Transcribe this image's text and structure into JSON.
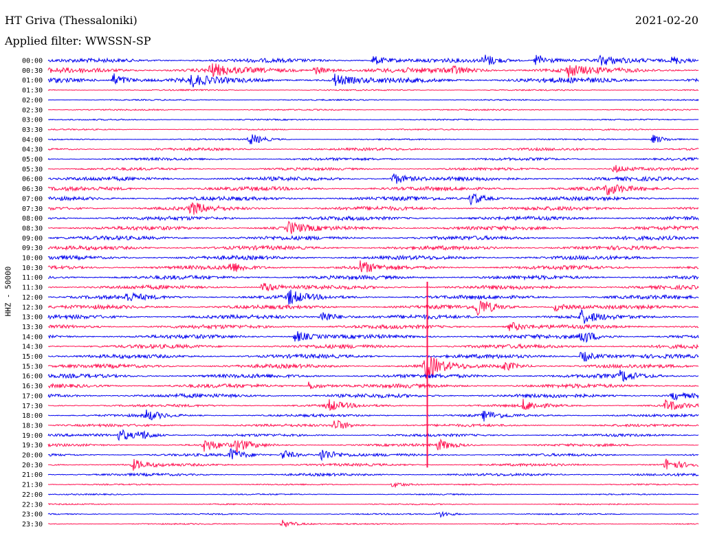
{
  "header": {
    "station": "HT Griva (Thessaloniki)",
    "date": "2021-02-20",
    "filter": "Applied filter: WWSSN-SP"
  },
  "chart_data": {
    "type": "line",
    "ylabel": "HHZ - 50000",
    "colors": [
      "#0000ee",
      "#ff1050"
    ],
    "rows": [
      "00:00",
      "00:30",
      "01:00",
      "01:30",
      "02:00",
      "02:30",
      "03:00",
      "03:30",
      "04:00",
      "04:30",
      "05:00",
      "05:30",
      "06:00",
      "06:30",
      "07:00",
      "07:30",
      "08:00",
      "08:30",
      "09:00",
      "09:30",
      "10:00",
      "10:30",
      "11:00",
      "11:30",
      "12:00",
      "12:30",
      "13:00",
      "13:30",
      "14:00",
      "14:30",
      "15:00",
      "15:30",
      "16:00",
      "16:30",
      "17:00",
      "17:30",
      "18:00",
      "18:30",
      "19:00",
      "19:30",
      "20:00",
      "20:30",
      "21:00",
      "21:30",
      "22:00",
      "22:30",
      "23:00",
      "23:30"
    ],
    "noise_level": [
      3,
      4,
      4,
      1,
      1,
      1,
      1,
      1,
      1,
      2,
      2,
      2,
      3,
      3,
      3,
      3,
      3,
      3,
      3,
      3,
      3,
      3,
      3,
      3,
      3,
      3,
      3,
      3,
      3,
      3,
      3,
      3,
      3,
      3,
      3,
      2,
      2,
      2,
      2,
      2,
      2,
      2,
      2,
      1,
      1,
      1,
      1,
      1
    ],
    "events": [
      {
        "row": 0,
        "x": 0.5,
        "amp": 7
      },
      {
        "row": 0,
        "x": 0.67,
        "amp": 9
      },
      {
        "row": 0,
        "x": 0.75,
        "amp": 10
      },
      {
        "row": 0,
        "x": 0.85,
        "amp": 7
      },
      {
        "row": 0,
        "x": 0.96,
        "amp": 6
      },
      {
        "row": 1,
        "x": 0.25,
        "amp": 10
      },
      {
        "row": 1,
        "x": 0.41,
        "amp": 6
      },
      {
        "row": 1,
        "x": 0.62,
        "amp": 6
      },
      {
        "row": 1,
        "x": 0.8,
        "amp": 8
      },
      {
        "row": 2,
        "x": 0.1,
        "amp": 10
      },
      {
        "row": 2,
        "x": 0.22,
        "amp": 8
      },
      {
        "row": 2,
        "x": 0.44,
        "amp": 9
      },
      {
        "row": 8,
        "x": 0.31,
        "amp": 9
      },
      {
        "row": 8,
        "x": 0.93,
        "amp": 7
      },
      {
        "row": 11,
        "x": 0.87,
        "amp": 6
      },
      {
        "row": 12,
        "x": 0.53,
        "amp": 9
      },
      {
        "row": 13,
        "x": 0.86,
        "amp": 8
      },
      {
        "row": 14,
        "x": 0.65,
        "amp": 10
      },
      {
        "row": 15,
        "x": 0.22,
        "amp": 9
      },
      {
        "row": 17,
        "x": 0.37,
        "amp": 9
      },
      {
        "row": 21,
        "x": 0.28,
        "amp": 7
      },
      {
        "row": 21,
        "x": 0.48,
        "amp": 9
      },
      {
        "row": 23,
        "x": 0.33,
        "amp": 8
      },
      {
        "row": 24,
        "x": 0.37,
        "amp": 10
      },
      {
        "row": 24,
        "x": 0.12,
        "amp": 6
      },
      {
        "row": 25,
        "x": 0.66,
        "amp": 14
      },
      {
        "row": 25,
        "x": 0.78,
        "amp": 6
      },
      {
        "row": 26,
        "x": 0.42,
        "amp": 10
      },
      {
        "row": 26,
        "x": 0.82,
        "amp": 9
      },
      {
        "row": 27,
        "x": 0.71,
        "amp": 7
      },
      {
        "row": 28,
        "x": 0.38,
        "amp": 9
      },
      {
        "row": 28,
        "x": 0.82,
        "amp": 10
      },
      {
        "row": 30,
        "x": 0.82,
        "amp": 9
      },
      {
        "row": 31,
        "x": 0.58,
        "amp": 22
      },
      {
        "row": 31,
        "x": 0.7,
        "amp": 7
      },
      {
        "row": 32,
        "x": 0.88,
        "amp": 8
      },
      {
        "row": 33,
        "x": 0.4,
        "amp": 6
      },
      {
        "row": 34,
        "x": 0.96,
        "amp": 6
      },
      {
        "row": 35,
        "x": 0.95,
        "amp": 9
      },
      {
        "row": 35,
        "x": 0.43,
        "amp": 9
      },
      {
        "row": 35,
        "x": 0.73,
        "amp": 8
      },
      {
        "row": 36,
        "x": 0.15,
        "amp": 8
      },
      {
        "row": 36,
        "x": 0.67,
        "amp": 7
      },
      {
        "row": 37,
        "x": 0.44,
        "amp": 9
      },
      {
        "row": 38,
        "x": 0.11,
        "amp": 9
      },
      {
        "row": 38,
        "x": 0.14,
        "amp": 7
      },
      {
        "row": 39,
        "x": 0.24,
        "amp": 9
      },
      {
        "row": 39,
        "x": 0.29,
        "amp": 9
      },
      {
        "row": 39,
        "x": 0.6,
        "amp": 8
      },
      {
        "row": 40,
        "x": 0.28,
        "amp": 9
      },
      {
        "row": 40,
        "x": 0.36,
        "amp": 8
      },
      {
        "row": 40,
        "x": 0.42,
        "amp": 10
      },
      {
        "row": 41,
        "x": 0.13,
        "amp": 8
      },
      {
        "row": 41,
        "x": 0.95,
        "amp": 9
      },
      {
        "row": 43,
        "x": 0.53,
        "amp": 5
      },
      {
        "row": 46,
        "x": 0.6,
        "amp": 5
      },
      {
        "row": 47,
        "x": 0.36,
        "amp": 6
      }
    ],
    "spike": {
      "x": 0.583,
      "from_row": 23,
      "to_row": 41
    }
  }
}
